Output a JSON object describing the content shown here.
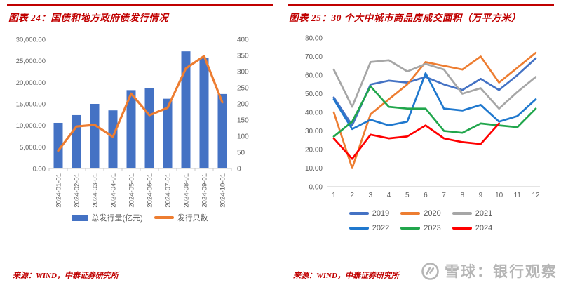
{
  "panels": [
    {
      "title": "图表 24：国债和地方政府债发行情况",
      "source": "来源：WIND，中泰证券研究所",
      "chart_data": {
        "type": "bar+line",
        "categories": [
          "2024-01-01",
          "2024-02-01",
          "2024-03-01",
          "2024-04-01",
          "2024-05-01",
          "2024-06-01",
          "2024-07-01",
          "2024-08-01",
          "2024-09-01",
          "2024-10-01"
        ],
        "series": [
          {
            "name": "总发行量(亿元)",
            "type": "bar",
            "axis": "left",
            "color": "#4472C4",
            "values": [
              10600,
              12400,
              15000,
              13500,
              18200,
              18700,
              16200,
              27200,
              25600,
              17300
            ]
          },
          {
            "name": "发行只数",
            "type": "line",
            "axis": "right",
            "color": "#ED7D31",
            "values": [
              55,
              130,
              135,
              98,
              232,
              165,
              188,
              310,
              348,
              205
            ]
          }
        ],
        "y_left": {
          "min": 0,
          "max": 30000,
          "ticks": [
            "0.00",
            "5,000.00",
            "10,000.00",
            "15,000.00",
            "20,000.00",
            "25,000.00",
            "30,000.00"
          ]
        },
        "y_right": {
          "min": 0,
          "max": 400,
          "ticks": [
            "0",
            "50",
            "100",
            "150",
            "200",
            "250",
            "300",
            "350",
            "400"
          ]
        },
        "grid": false,
        "legend_position": "bottom"
      }
    },
    {
      "title": "图表 25：30 个大中城市商品房成交面积（万平方米）",
      "source": "来源：WIND，中泰证券研究所",
      "chart_data": {
        "type": "line",
        "x": [
          "1",
          "2",
          "3",
          "4",
          "5",
          "6",
          "7",
          "8",
          "9",
          "10",
          "11",
          "12"
        ],
        "series": [
          {
            "name": "2019",
            "color": "#4472C4",
            "values": [
              48,
              33,
              55,
              57,
              56,
              59,
              55,
              52,
              58,
              52,
              60,
              69
            ]
          },
          {
            "name": "2020",
            "color": "#ED7D31",
            "values": [
              40,
              10,
              39,
              47,
              55,
              67,
              65,
              63,
              70,
              56,
              64,
              72
            ]
          },
          {
            "name": "2021",
            "color": "#A6A6A6",
            "values": [
              63,
              43,
              67,
              68,
              62,
              66,
              63,
              50,
              53,
              42,
              51,
              59
            ]
          },
          {
            "name": "2022",
            "color": "#1F78CE",
            "values": [
              47,
              31,
              36,
              33,
              35,
              61,
              42,
              41,
              44,
              35,
              38,
              47
            ]
          },
          {
            "name": "2023",
            "color": "#21A64C",
            "values": [
              27,
              35,
              54,
              43,
              42,
              42,
              30,
              29,
              34,
              33,
              32,
              42
            ]
          },
          {
            "name": "2024",
            "color": "#FF0000",
            "values": [
              26,
              15,
              28,
              26,
              27,
              33,
              26,
              24,
              23,
              34,
              null,
              null
            ]
          }
        ],
        "y": {
          "min": 0,
          "max": 80,
          "ticks": [
            "0.00",
            "10.00",
            "20.00",
            "30.00",
            "40.00",
            "50.00",
            "60.00",
            "70.00",
            "80.00"
          ]
        },
        "grid": false,
        "legend_position": "bottom"
      }
    }
  ],
  "watermark": {
    "text": "雪球：银行观察",
    "icon": "xueqiu-logo"
  }
}
